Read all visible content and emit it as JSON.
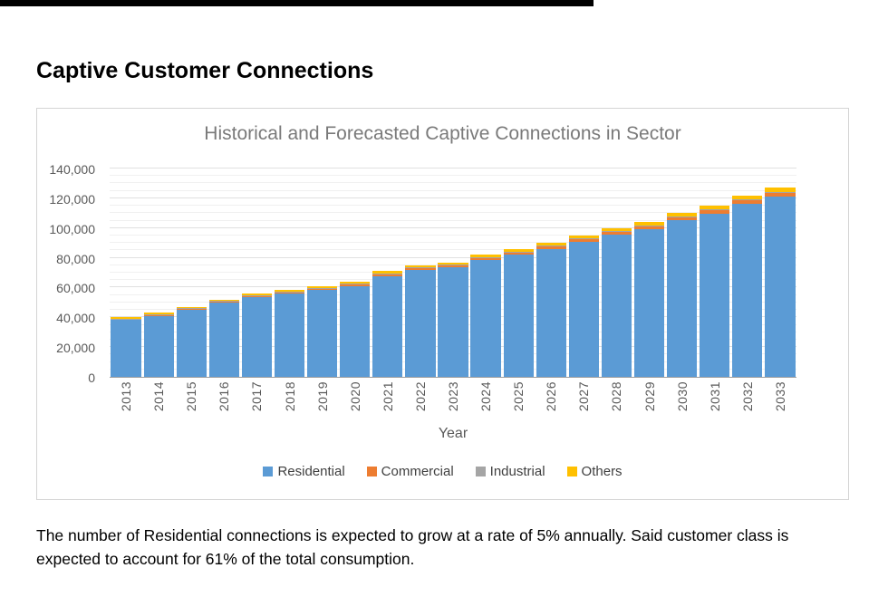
{
  "page": {
    "title": "Captive Customer Connections",
    "caption": "The number of Residential connections is expected to grow at a rate of 5% annually. Said customer class is expected to account for 61% of the total consumption."
  },
  "chart_data": {
    "type": "bar",
    "stacked": true,
    "title": "Historical and Forecasted Captive Connections in Sector",
    "xlabel": "Year",
    "ylabel": "",
    "ylim": [
      0,
      140000
    ],
    "ytick_interval": 20000,
    "minor_grid_interval": 5000,
    "grid": true,
    "legend_position": "bottom",
    "categories": [
      "2013",
      "2014",
      "2015",
      "2016",
      "2017",
      "2018",
      "2019",
      "2020",
      "2021",
      "2022",
      "2023",
      "2024",
      "2025",
      "2026",
      "2027",
      "2028",
      "2029",
      "2030",
      "2031",
      "2032",
      "2033"
    ],
    "series": [
      {
        "name": "Residential",
        "color": "#5B9BD5",
        "values": [
          38200,
          41000,
          44900,
          49700,
          53500,
          55900,
          58300,
          61100,
          67800,
          71600,
          73500,
          78300,
          82100,
          86000,
          90700,
          95500,
          99300,
          105100,
          109800,
          116500,
          121300
        ]
      },
      {
        "name": "Commercial",
        "color": "#ED7D31",
        "values": [
          800,
          860,
          940,
          1040,
          1120,
          1170,
          1220,
          1280,
          1420,
          1500,
          1540,
          1640,
          1720,
          1800,
          1900,
          2000,
          2080,
          2200,
          2300,
          2440,
          2540
        ]
      },
      {
        "name": "Industrial",
        "color": "#A5A5A5",
        "values": [
          200,
          215,
          235,
          260,
          280,
          293,
          305,
          320,
          355,
          375,
          385,
          410,
          430,
          450,
          475,
          500,
          520,
          550,
          575,
          610,
          635
        ]
      },
      {
        "name": "Others",
        "color": "#FFC000",
        "values": [
          800,
          860,
          940,
          1040,
          1120,
          1170,
          1220,
          1280,
          1420,
          1500,
          1540,
          1640,
          1720,
          1800,
          1900,
          2000,
          2080,
          2200,
          2300,
          2440,
          2540
        ]
      }
    ]
  }
}
